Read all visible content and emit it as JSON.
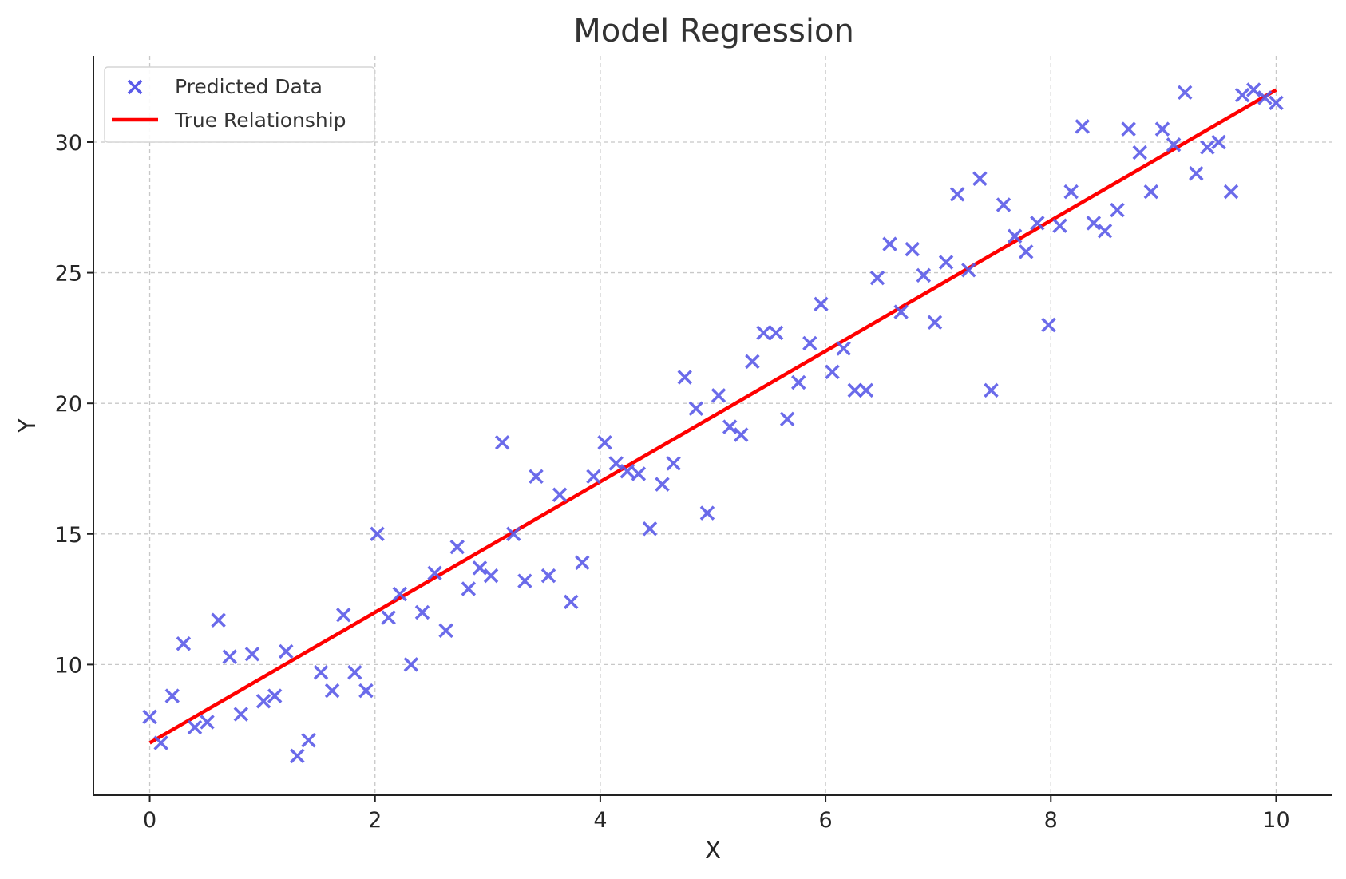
{
  "chart_data": {
    "type": "scatter",
    "title": "Model Regression",
    "xlabel": "X",
    "ylabel": "Y",
    "xlim": [
      -0.5,
      10.5
    ],
    "ylim": [
      5.0,
      33.3
    ],
    "xticks": [
      0,
      2,
      4,
      6,
      8,
      10
    ],
    "yticks": [
      10,
      15,
      20,
      25,
      30
    ],
    "grid": true,
    "legend_position": "top-left",
    "series": [
      {
        "name": "Predicted Data",
        "type": "scatter",
        "marker": "x",
        "color": "#5b5be8",
        "x": [
          0.0,
          0.1,
          0.2,
          0.3,
          0.4,
          0.51,
          0.61,
          0.71,
          0.81,
          0.91,
          1.01,
          1.11,
          1.21,
          1.31,
          1.41,
          1.52,
          1.62,
          1.72,
          1.82,
          1.92,
          2.02,
          2.12,
          2.22,
          2.32,
          2.42,
          2.53,
          2.63,
          2.73,
          2.83,
          2.93,
          3.03,
          3.13,
          3.23,
          3.33,
          3.43,
          3.54,
          3.64,
          3.74,
          3.84,
          3.94,
          4.04,
          4.14,
          4.24,
          4.34,
          4.44,
          4.55,
          4.65,
          4.75,
          4.85,
          4.95,
          5.05,
          5.15,
          5.25,
          5.35,
          5.45,
          5.56,
          5.66,
          5.76,
          5.86,
          5.96,
          6.06,
          6.16,
          6.26,
          6.36,
          6.46,
          6.57,
          6.67,
          6.77,
          6.87,
          6.97,
          7.07,
          7.17,
          7.27,
          7.37,
          7.47,
          7.58,
          7.68,
          7.78,
          7.88,
          7.98,
          8.08,
          8.18,
          8.28,
          8.38,
          8.48,
          8.59,
          8.69,
          8.79,
          8.89,
          8.99,
          9.09,
          9.19,
          9.29,
          9.39,
          9.49,
          9.6,
          9.7,
          9.8,
          9.9,
          10.0
        ],
        "y": [
          8.0,
          7.0,
          8.8,
          10.8,
          7.6,
          7.8,
          11.7,
          10.3,
          8.1,
          10.4,
          8.6,
          8.8,
          10.5,
          6.5,
          7.1,
          9.7,
          9.0,
          11.9,
          9.7,
          9.0,
          15.0,
          11.8,
          12.7,
          10.0,
          12.0,
          13.5,
          11.3,
          14.5,
          12.9,
          13.7,
          13.4,
          18.5,
          15.0,
          13.2,
          17.2,
          13.4,
          16.5,
          12.4,
          13.9,
          17.2,
          18.5,
          17.7,
          17.4,
          17.3,
          15.2,
          16.9,
          17.7,
          21.0,
          19.8,
          15.8,
          20.3,
          19.1,
          18.8,
          21.6,
          22.7,
          22.7,
          19.4,
          20.8,
          22.3,
          23.8,
          21.2,
          22.1,
          20.5,
          20.5,
          24.8,
          26.1,
          23.5,
          25.9,
          24.9,
          23.1,
          25.4,
          28.0,
          25.1,
          28.6,
          20.5,
          27.6,
          26.4,
          25.8,
          26.9,
          23.0,
          26.8,
          28.1,
          30.6,
          26.9,
          26.6,
          27.4,
          30.5,
          29.6,
          28.1,
          30.5,
          29.9,
          31.9,
          28.8,
          29.8,
          30.0,
          28.1,
          31.8,
          32.0,
          31.7,
          31.5
        ]
      },
      {
        "name": "True Relationship",
        "type": "line",
        "color": "#ff0000",
        "x": [
          0,
          10
        ],
        "y": [
          7,
          32
        ]
      }
    ]
  }
}
